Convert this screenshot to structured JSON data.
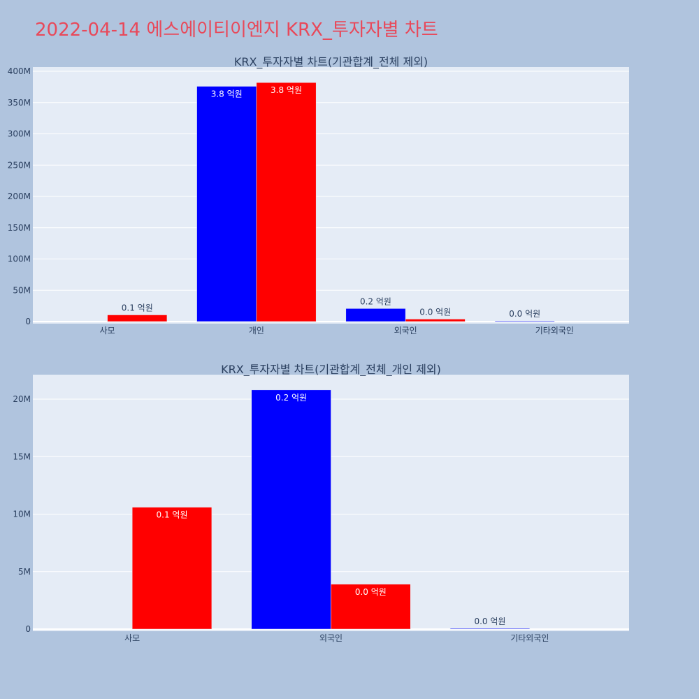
{
  "header": {
    "title": "2022-04-14 에스에이티이엔지 KRX_투자자별 차트"
  },
  "colors": {
    "background": "#b0c4de",
    "plot_background": "#e5ecf6",
    "title": "#e8495a",
    "series_a": "#0000ff",
    "series_b": "#ff0000",
    "text": "#2a3f5f"
  },
  "chart_data": [
    {
      "type": "bar",
      "title": "KRX_투자자별 차트(기관합계_전체 제외)",
      "categories": [
        "사모",
        "개인",
        "외국인",
        "기타외국인"
      ],
      "ylim": [
        0,
        400000000
      ],
      "yticks": [
        {
          "value": 0,
          "label": "0"
        },
        {
          "value": 50000000,
          "label": "50M"
        },
        {
          "value": 100000000,
          "label": "100M"
        },
        {
          "value": 150000000,
          "label": "150M"
        },
        {
          "value": 200000000,
          "label": "200M"
        },
        {
          "value": 250000000,
          "label": "250M"
        },
        {
          "value": 300000000,
          "label": "300M"
        },
        {
          "value": 350000000,
          "label": "350M"
        },
        {
          "value": 400000000,
          "label": "400M"
        }
      ],
      "grid": true,
      "series": [
        {
          "color": "#0000ff",
          "values": [
            0,
            376000000,
            20800000,
            60000
          ],
          "labels": [
            "",
            "3.8 억원",
            "0.2 억원",
            "0.0 억원"
          ]
        },
        {
          "color": "#ff0000",
          "values": [
            10600000,
            382000000,
            3900000,
            0
          ],
          "labels": [
            "0.1 억원",
            "3.8 억원",
            "0.0 억원",
            ""
          ]
        }
      ]
    },
    {
      "type": "bar",
      "title": "KRX_투자자별 차트(기관합계_전체_개인 제외)",
      "categories": [
        "사모",
        "외국인",
        "기타외국인"
      ],
      "ylim": [
        0,
        22000000
      ],
      "yticks": [
        {
          "value": 0,
          "label": "0"
        },
        {
          "value": 5000000,
          "label": "5M"
        },
        {
          "value": 10000000,
          "label": "10M"
        },
        {
          "value": 15000000,
          "label": "15M"
        },
        {
          "value": 20000000,
          "label": "20M"
        }
      ],
      "grid": true,
      "series": [
        {
          "color": "#0000ff",
          "values": [
            0,
            20800000,
            60000
          ],
          "labels": [
            "",
            "0.2 억원",
            "0.0 억원"
          ]
        },
        {
          "color": "#ff0000",
          "values": [
            10600000,
            3900000,
            0
          ],
          "labels": [
            "0.1 억원",
            "0.0 억원",
            ""
          ]
        }
      ]
    }
  ]
}
